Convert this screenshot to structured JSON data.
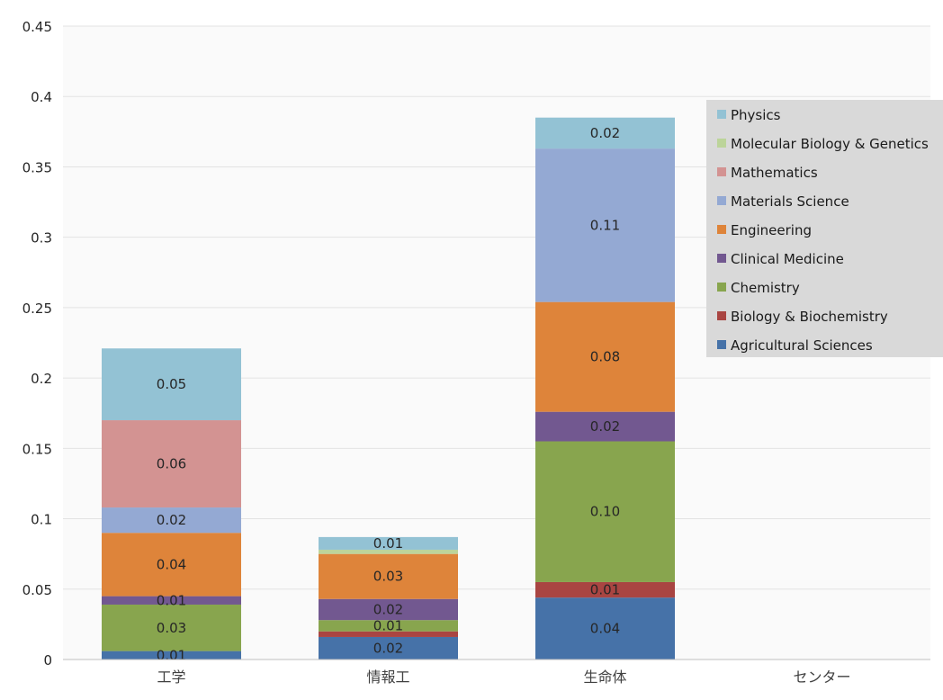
{
  "chart_data": {
    "type": "bar",
    "stacked": true,
    "title": "",
    "xlabel": "",
    "ylabel": "",
    "categories": [
      "工学",
      "情報工",
      "生命体",
      "センター"
    ],
    "ylim": [
      0,
      0.45
    ],
    "y_ticks": [
      "0",
      "0.05",
      "0.1",
      "0.15",
      "0.2",
      "0.25",
      "0.3",
      "0.35",
      "0.4",
      "0.45"
    ],
    "grid": true,
    "legend_position": "right",
    "series": [
      {
        "name": "Agricultural Sciences",
        "color": "#4672a8",
        "values": [
          0.006,
          0.016,
          0.044,
          0
        ],
        "labels": [
          "0.01",
          "0.02",
          "0.04",
          ""
        ]
      },
      {
        "name": "Biology & Biochemistry",
        "color": "#a94542",
        "values": [
          0.0,
          0.004,
          0.011,
          0
        ],
        "labels": [
          "",
          "",
          "0.01",
          ""
        ]
      },
      {
        "name": "Chemistry",
        "color": "#88a54e",
        "values": [
          0.033,
          0.008,
          0.1,
          0
        ],
        "labels": [
          "0.03",
          "0.01",
          "0.10",
          ""
        ]
      },
      {
        "name": "Clinical Medicine",
        "color": "#725890",
        "values": [
          0.006,
          0.015,
          0.021,
          0
        ],
        "labels": [
          "0.01",
          "0.02",
          "0.02",
          ""
        ]
      },
      {
        "name": "Engineering",
        "color": "#de843a",
        "values": [
          0.045,
          0.032,
          0.078,
          0
        ],
        "labels": [
          "0.04",
          "0.03",
          "0.08",
          ""
        ]
      },
      {
        "name": "Materials Science",
        "color": "#94a9d3",
        "values": [
          0.018,
          0.0,
          0.109,
          0
        ],
        "labels": [
          "0.02",
          "",
          "0.11",
          ""
        ]
      },
      {
        "name": "Mathematics",
        "color": "#d39392",
        "values": [
          0.062,
          0.0,
          0.0,
          0
        ],
        "labels": [
          "0.06",
          "",
          "",
          ""
        ]
      },
      {
        "name": "Molecular Biology & Genetics",
        "color": "#bcd49a",
        "values": [
          0.0,
          0.003,
          0.0,
          0
        ],
        "labels": [
          "",
          "",
          "",
          ""
        ]
      },
      {
        "name": "Physics",
        "color": "#93c2d4",
        "values": [
          0.051,
          0.009,
          0.022,
          0
        ],
        "labels": [
          "0.05",
          "0.01",
          "0.02",
          ""
        ]
      }
    ]
  }
}
